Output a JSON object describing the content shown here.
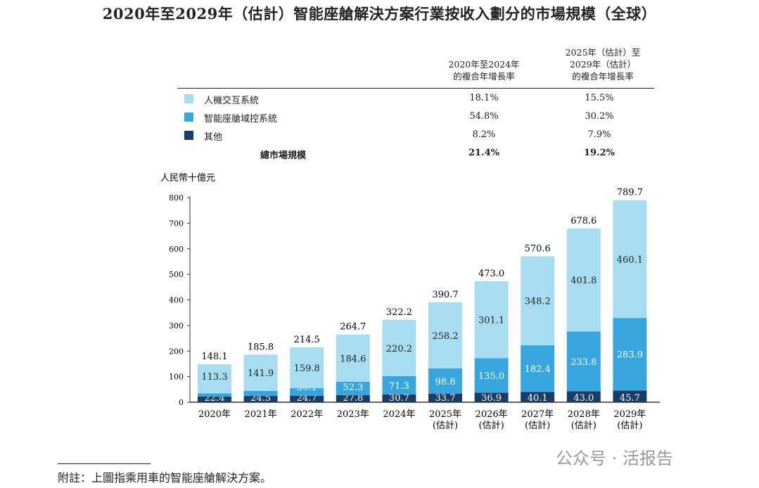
{
  "title": "2020年至2029年（估計）智能座艙解決方案行業按收入劃分的市場規模（全球）",
  "table": {
    "headers": [
      [
        "2020年至2024年",
        "的複合年增長率"
      ],
      [
        "2025年（估計）至",
        "2029年（估計）",
        "的複合年增長率"
      ]
    ],
    "rows": [
      {
        "label": "人機交互系統",
        "cagr1": "18.1%",
        "cagr2": "15.5%",
        "color": "#a8dcf1"
      },
      {
        "label": "智能座艙域控系統",
        "cagr1": "54.8%",
        "cagr2": "30.2%",
        "color": "#37a6de"
      },
      {
        "label": "其他",
        "cagr1": "8.2%",
        "cagr2": "7.9%",
        "color": "#1a3d68"
      }
    ],
    "total": {
      "label": "總市場規模",
      "cagr1": "21.4%",
      "cagr2": "19.2%"
    }
  },
  "chart_data": {
    "type": "stacked-bar",
    "ylabel": "人民幣十億元",
    "ylim": [
      0,
      800
    ],
    "yticks": [
      "0",
      "100",
      "200",
      "300",
      "400",
      "500",
      "600",
      "700",
      "800"
    ],
    "categories": [
      [
        "2020年"
      ],
      [
        "2021年"
      ],
      [
        "2022年"
      ],
      [
        "2023年"
      ],
      [
        "2024年"
      ],
      [
        "2025年",
        "(估計)"
      ],
      [
        "2026年",
        "(估計)"
      ],
      [
        "2027年",
        "(估計)"
      ],
      [
        "2028年",
        "(估計)"
      ],
      [
        "2029年",
        "(估計)"
      ]
    ],
    "series": [
      {
        "name": "其他",
        "color": "#1a3d68",
        "values": [
          22.4,
          24.5,
          24.7,
          27.8,
          30.7,
          33.7,
          36.9,
          40.1,
          43.0,
          45.7
        ]
      },
      {
        "name": "智能座艙域控系統",
        "color": "#37a6de",
        "values": [
          12.4,
          19.4,
          30.1,
          52.3,
          71.3,
          98.8,
          135.0,
          182.4,
          233.8,
          283.9
        ]
      },
      {
        "name": "人機交互系統",
        "color": "#a8dcf1",
        "values": [
          113.3,
          141.9,
          159.8,
          184.6,
          220.2,
          258.2,
          301.1,
          348.2,
          401.8,
          460.1
        ]
      }
    ],
    "totals": [
      148.1,
      185.8,
      214.5,
      264.7,
      322.2,
      390.7,
      473.0,
      570.6,
      678.6,
      789.7
    ]
  },
  "note": "附註：上圖指乘用車的智能座艙解決方案。",
  "watermark": "公众号 · 活报告"
}
